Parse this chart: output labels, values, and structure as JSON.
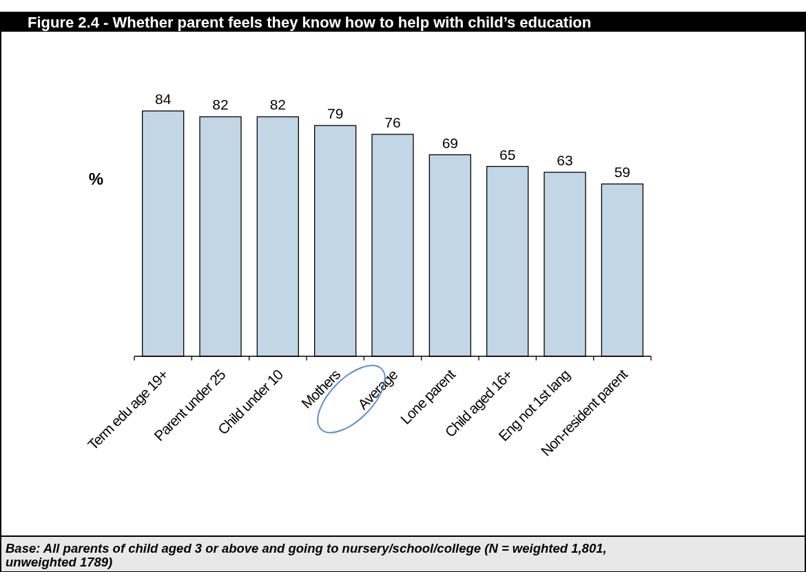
{
  "chart_data": {
    "type": "bar",
    "title": "Figure 2.4 - Whether parent feels they know how to help with child’s education",
    "ylabel": "%",
    "categories": [
      "Term edu age 19+",
      "Parent under 25",
      "Child under 10",
      "Mothers",
      "Average",
      "Lone parent",
      "Child aged 16+",
      "Eng not 1st lang",
      "Non-resident parent"
    ],
    "values": [
      84,
      82,
      82,
      79,
      76,
      69,
      65,
      63,
      59
    ],
    "color": "#c3d6e6",
    "data_labels": true,
    "annotations": [
      "Base: All parents of child aged 3 or above and going to nursery/school/college (N = weighted 1,801, unweighted 1789)"
    ]
  }
}
